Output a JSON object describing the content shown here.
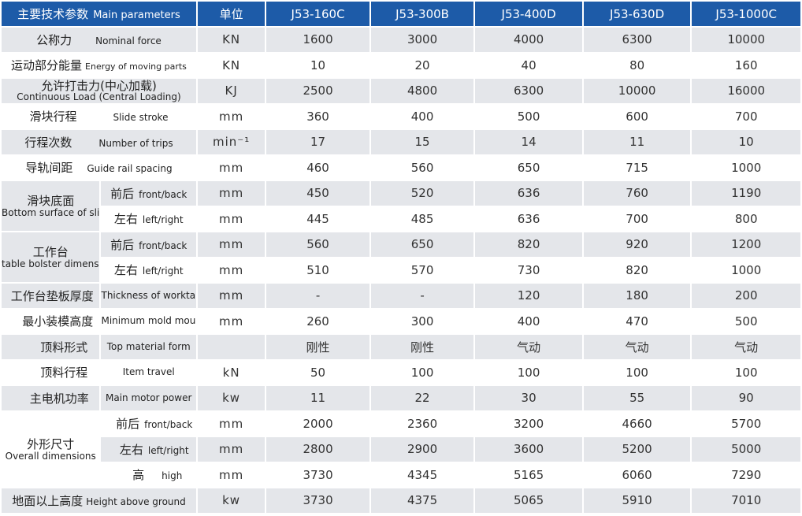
{
  "header": {
    "param_zh": "主要技术参数",
    "param_en": "Main parameters",
    "unit": "单位",
    "models": [
      "J53-160C",
      "J53-300B",
      "J53-400D",
      "J53-630D",
      "J53-1000C"
    ]
  },
  "rows": [
    {
      "zh": "公称力",
      "en": "Nominal force",
      "unit": "KN",
      "values": [
        "1600",
        "3000",
        "4000",
        "6300",
        "10000"
      ]
    },
    {
      "zh": "运动部分能量",
      "en": "Energy of moving parts",
      "unit": "KN",
      "values": [
        "10",
        "20",
        "40",
        "80",
        "160"
      ]
    },
    {
      "zh": "允许打击力(中心加载)",
      "en": "Continuous  Load (Central Loading)",
      "unit": "KJ",
      "values": [
        "2500",
        "4800",
        "6300",
        "10000",
        "16000"
      ]
    },
    {
      "zh": "滑块行程",
      "en": "Slide stroke",
      "unit": "mm",
      "values": [
        "360",
        "400",
        "500",
        "600",
        "700"
      ]
    },
    {
      "zh": "行程次数",
      "en": "Number of trips",
      "unit": "min⁻¹",
      "values": [
        "17",
        "15",
        "14",
        "11",
        "10"
      ]
    },
    {
      "zh": "导轨间距",
      "en": "Guide rail spacing",
      "unit": "mm",
      "values": [
        "460",
        "560",
        "650",
        "715",
        "1000"
      ]
    }
  ],
  "slider_group": {
    "zh": "滑块底面",
    "en": "Bottom surface of slider",
    "rows": [
      {
        "zh": "前后",
        "en": "front/back",
        "unit": "mm",
        "values": [
          "450",
          "520",
          "636",
          "760",
          "1190"
        ]
      },
      {
        "zh": "左右",
        "en": "left/right",
        "unit": "mm",
        "values": [
          "445",
          "485",
          "636",
          "700",
          "800"
        ]
      }
    ]
  },
  "table_group": {
    "zh": "工作台",
    "en": "table bolster dimension",
    "rows": [
      {
        "zh": "前后",
        "en": "front/back",
        "unit": "mm",
        "values": [
          "560",
          "650",
          "820",
          "920",
          "1200"
        ]
      },
      {
        "zh": "左右",
        "en": "left/right",
        "unit": "mm",
        "values": [
          "510",
          "570",
          "730",
          "820",
          "1000"
        ]
      }
    ]
  },
  "rows2": [
    {
      "zh": "工作台垫板厚度",
      "en": "Thickness of worktable base plate",
      "unit": "mm",
      "values": [
        "-",
        "-",
        "120",
        "180",
        "200"
      ]
    },
    {
      "zh": "最小装模高度",
      "en": "Minimum mold mounting height",
      "unit": "mm",
      "values": [
        "260",
        "300",
        "400",
        "470",
        "500"
      ]
    },
    {
      "zh": "顶料形式",
      "en": "Top material form",
      "unit": "",
      "values": [
        "刚性",
        "刚性",
        "气动",
        "气动",
        "气动"
      ]
    },
    {
      "zh": "顶料行程",
      "en": "Item travel",
      "unit": "kN",
      "values": [
        "50",
        "100",
        "100",
        "100",
        "100"
      ]
    },
    {
      "zh": "主电机功率",
      "en": "Main motor power",
      "unit": "kw",
      "values": [
        "11",
        "22",
        "30",
        "55",
        "90"
      ]
    }
  ],
  "overall_group": {
    "zh": "外形尺寸",
    "en": "Overall dimensions",
    "rows": [
      {
        "zh": "前后",
        "en": "front/back",
        "unit": "mm",
        "values": [
          "2000",
          "2360",
          "3200",
          "4660",
          "5700"
        ]
      },
      {
        "zh": "左右",
        "en": "left/right",
        "unit": "mm",
        "values": [
          "2800",
          "2900",
          "3600",
          "5200",
          "5000"
        ]
      },
      {
        "zh": "高",
        "en": "high",
        "unit": "mm",
        "values": [
          "3730",
          "4345",
          "5165",
          "6060",
          "7290"
        ]
      }
    ]
  },
  "last_row": {
    "zh": "地面以上高度",
    "en": "Height above ground",
    "unit": "kw",
    "values": [
      "3730",
      "4375",
      "5065",
      "5910",
      "7010"
    ]
  },
  "colors": {
    "header_bg": "#1d5ba8",
    "stripe": "#e4e6ea"
  }
}
